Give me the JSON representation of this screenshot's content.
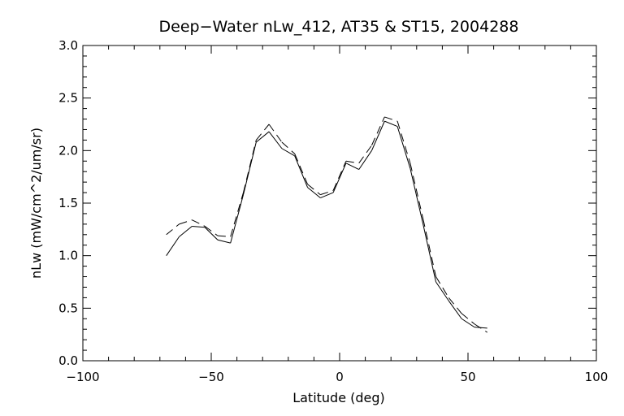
{
  "chart_data": {
    "type": "line",
    "title": "Deep−Water nLw_412, AT35 & ST15, 2004288",
    "xlabel": "Latitude (deg)",
    "ylabel": "nLw (mW/cm^2/um/sr)",
    "xlim": [
      -100,
      100
    ],
    "ylim": [
      0.0,
      3.0
    ],
    "x_ticks": [
      "−100",
      "−50",
      "0",
      "50",
      "100"
    ],
    "x_tick_values": [
      -100,
      -50,
      0,
      50,
      100
    ],
    "y_ticks": [
      "0.0",
      "0.5",
      "1.0",
      "1.5",
      "2.0",
      "2.5",
      "3.0"
    ],
    "y_tick_values": [
      0.0,
      0.5,
      1.0,
      1.5,
      2.0,
      2.5,
      3.0
    ],
    "grid": false,
    "series": [
      {
        "style": "solid",
        "x": [
          -67.5,
          -62.5,
          -57.5,
          -52.5,
          -47.5,
          -42.5,
          -37.5,
          -32.5,
          -27.5,
          -22.5,
          -17.5,
          -12.5,
          -7.5,
          -2.5,
          2.5,
          7.5,
          12.5,
          17.5,
          22.5,
          27.5,
          32.5,
          37.5,
          42.5,
          47.5,
          52.5,
          57.5
        ],
        "y": [
          1.0,
          1.18,
          1.28,
          1.27,
          1.15,
          1.12,
          1.58,
          2.08,
          2.18,
          2.02,
          1.95,
          1.65,
          1.55,
          1.6,
          1.88,
          1.82,
          2.0,
          2.28,
          2.23,
          1.83,
          1.3,
          0.75,
          0.57,
          0.4,
          0.32,
          0.31
        ]
      },
      {
        "style": "dashed",
        "x": [
          -67.5,
          -62.5,
          -57.5,
          -52.5,
          -47.5,
          -42.5,
          -37.5,
          -32.5,
          -27.5,
          -22.5,
          -17.5,
          -12.5,
          -7.5,
          -2.5,
          2.5,
          7.5,
          12.5,
          17.5,
          22.5,
          27.5,
          32.5,
          37.5,
          42.5,
          47.5,
          52.5,
          57.5
        ],
        "y": [
          1.2,
          1.3,
          1.34,
          1.28,
          1.19,
          1.18,
          1.6,
          2.1,
          2.25,
          2.08,
          1.97,
          1.68,
          1.58,
          1.62,
          1.9,
          1.88,
          2.05,
          2.32,
          2.28,
          1.88,
          1.35,
          0.8,
          0.6,
          0.45,
          0.35,
          0.27
        ]
      }
    ]
  }
}
